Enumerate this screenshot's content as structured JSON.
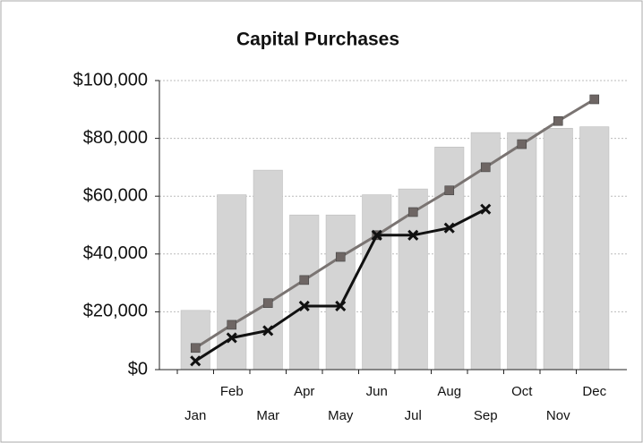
{
  "chart_data": {
    "type": "bar_line",
    "title": "Capital Purchases",
    "categories": [
      "Jan",
      "Feb",
      "Mar",
      "Apr",
      "May",
      "Jun",
      "Jul",
      "Aug",
      "Sep",
      "Oct",
      "Nov",
      "Dec"
    ],
    "series": [
      {
        "type": "bar",
        "color": "#d4d4d4",
        "values": [
          20500,
          60500,
          69000,
          53500,
          53500,
          60500,
          62500,
          77000,
          82000,
          82000,
          83500,
          84000
        ]
      },
      {
        "type": "line",
        "marker": "square",
        "color": "#7a7472",
        "values": [
          7500,
          15500,
          23000,
          31000,
          39000,
          46500,
          54500,
          62000,
          70000,
          78000,
          86000,
          93500
        ]
      },
      {
        "type": "line",
        "marker": "x",
        "color": "#111111",
        "values": [
          3000,
          11000,
          13500,
          22000,
          22000,
          46500,
          46500,
          49000,
          55500,
          null,
          null,
          null
        ]
      }
    ],
    "ylim": [
      0,
      100000
    ],
    "yticks": [
      {
        "value": 0,
        "label": "$0"
      },
      {
        "value": 20000,
        "label": "$20,000"
      },
      {
        "value": 40000,
        "label": "$40,000"
      },
      {
        "value": 60000,
        "label": "$60,000"
      },
      {
        "value": 80000,
        "label": "$80,000"
      },
      {
        "value": 100000,
        "label": "$100,000"
      }
    ],
    "grid": true
  }
}
